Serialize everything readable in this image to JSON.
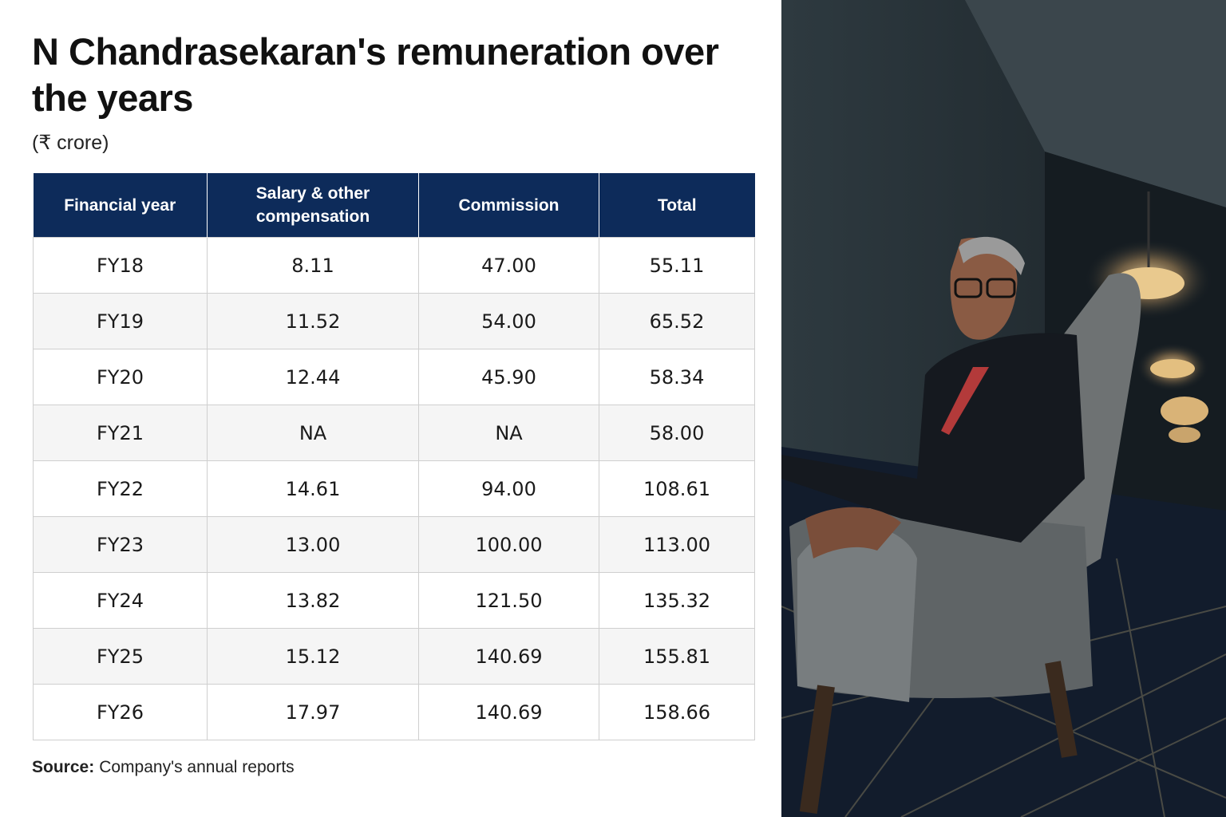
{
  "header": {
    "title": "N Chandrasekaran's remuneration over the years",
    "subtitle": "(₹ crore)"
  },
  "table": {
    "header": [
      "Financial year",
      "Salary & other compensation",
      "Commission",
      "Total"
    ],
    "rows": [
      [
        "FY18",
        "8.11",
        "47.00",
        "55.11"
      ],
      [
        "FY19",
        "11.52",
        "54.00",
        "65.52"
      ],
      [
        "FY20",
        "12.44",
        "45.90",
        "58.34"
      ],
      [
        "FY21",
        "NA",
        "NA",
        "58.00"
      ],
      [
        "FY22",
        "14.61",
        "94.00",
        "108.61"
      ],
      [
        "FY23",
        "13.00",
        "100.00",
        "113.00"
      ],
      [
        "FY24",
        "13.82",
        "121.50",
        "135.32"
      ],
      [
        "FY25",
        "15.12",
        "140.69",
        "155.81"
      ],
      [
        "FY26",
        "17.97",
        "140.69",
        "158.66"
      ]
    ]
  },
  "source": {
    "label": "Source:",
    "text": "Company's annual reports"
  }
}
